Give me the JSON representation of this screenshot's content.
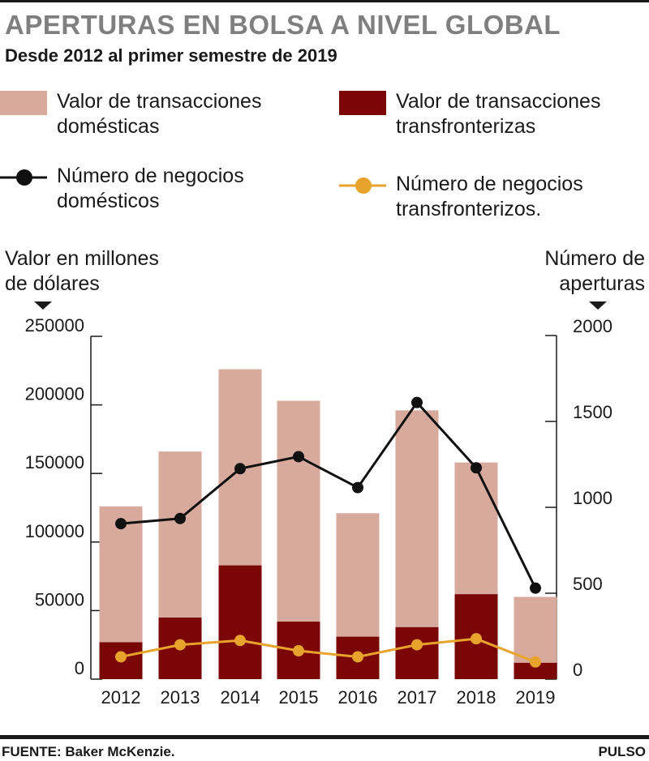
{
  "header": {
    "title": "APERTURAS EN BOLSA A NIVEL GLOBAL",
    "subtitle": "Desde 2012 al primer semestre de 2019"
  },
  "legend": [
    {
      "label": "Valor de transacciones\ndomésticas",
      "kind": "bar",
      "color": "#d7aa9d"
    },
    {
      "label": "Valor de transacciones\ntransfronterizas",
      "kind": "bar",
      "color": "#7a0606"
    },
    {
      "label": "Número de negocios\ndomésticos",
      "kind": "line",
      "color": "#111111"
    },
    {
      "label": "Número de negocios\ntransfronterizos.",
      "kind": "line",
      "color": "#e8a32c"
    }
  ],
  "axes": {
    "left_title": "Valor en millones\nde dólares",
    "right_title": "Número de\naperturas"
  },
  "chart_data": {
    "type": "bar",
    "stacked": true,
    "categories": [
      "2012",
      "2013",
      "2014",
      "2015",
      "2016",
      "2017",
      "2018",
      "2019"
    ],
    "series": [
      {
        "name": "Valor de transacciones transfronterizas",
        "type": "bar",
        "axis": "left",
        "color": "#7a0606",
        "values": [
          27000,
          45000,
          83000,
          42000,
          31000,
          38000,
          62000,
          12000
        ]
      },
      {
        "name": "Valor de transacciones domésticas",
        "type": "bar",
        "axis": "left",
        "color": "#d7aa9d",
        "values": [
          99000,
          121000,
          143000,
          161000,
          90000,
          158000,
          96000,
          48000
        ]
      },
      {
        "name": "Número de negocios domésticos",
        "type": "line",
        "axis": "right",
        "color": "#111111",
        "values": [
          905,
          935,
          1225,
          1295,
          1115,
          1610,
          1230,
          530
        ]
      },
      {
        "name": "Número de negocios transfronterizos.",
        "type": "line",
        "axis": "right",
        "color": "#e8a32c",
        "values": [
          130,
          200,
          225,
          165,
          130,
          200,
          235,
          100
        ]
      }
    ],
    "left_axis": {
      "min": 0,
      "max": 250000,
      "ticks": [
        "0",
        "50000",
        "100000",
        "150000",
        "200000",
        "250000"
      ]
    },
    "right_axis": {
      "min": 0,
      "max": 2000,
      "ticks": [
        "0",
        "500",
        "1000",
        "1500",
        "2000"
      ]
    },
    "grid": false
  },
  "footer": {
    "source": "FUENTE: Baker McKenzie.",
    "brand": "PULSO"
  }
}
